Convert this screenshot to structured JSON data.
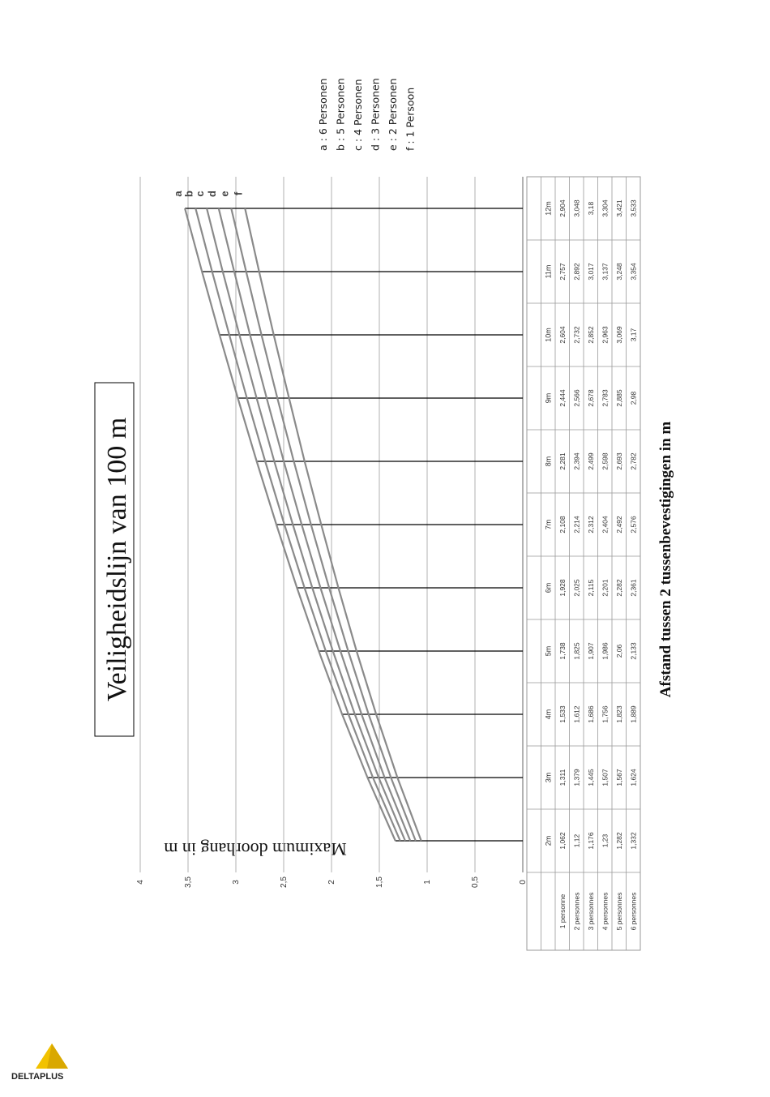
{
  "chart_data": {
    "type": "line",
    "title": "Veiligheidslijn van 100 m",
    "xlabel": "Afstand tussen 2 tussenbevestigingen in m",
    "ylabel": "Maximum doorhang in m",
    "ylim": [
      0,
      4
    ],
    "yticks": [
      "0",
      "0,5",
      "1",
      "1,5",
      "2",
      "2,5",
      "3",
      "3,5",
      "4"
    ],
    "grid": true,
    "categories": [
      "2m",
      "3m",
      "4m",
      "5m",
      "6m",
      "7m",
      "8m",
      "9m",
      "10m",
      "11m",
      "12m"
    ],
    "series": [
      {
        "name": "1 personne",
        "curve_label": "f",
        "values": [
          1.062,
          1.311,
          1.533,
          1.738,
          1.928,
          2.108,
          2.281,
          2.444,
          2.604,
          2.757,
          2.904
        ],
        "display": [
          "1,062",
          "1,311",
          "1,533",
          "1,738",
          "1,928",
          "2,108",
          "2,281",
          "2,444",
          "2,604",
          "2,757",
          "2,904"
        ]
      },
      {
        "name": "2 personnes",
        "curve_label": "e",
        "values": [
          1.12,
          1.379,
          1.612,
          1.825,
          2.025,
          2.214,
          2.394,
          2.566,
          2.732,
          2.892,
          3.048
        ],
        "display": [
          "1,12",
          "1,379",
          "1,612",
          "1,825",
          "2,025",
          "2,214",
          "2,394",
          "2,566",
          "2,732",
          "2,892",
          "3,048"
        ]
      },
      {
        "name": "3 personnes",
        "curve_label": "d",
        "values": [
          1.176,
          1.445,
          1.686,
          1.907,
          2.115,
          2.312,
          2.499,
          2.678,
          2.852,
          3.017,
          3.18
        ],
        "display": [
          "1,176",
          "1,445",
          "1,686",
          "1,907",
          "2,115",
          "2,312",
          "2,499",
          "2,678",
          "2,852",
          "3,017",
          "3,18"
        ]
      },
      {
        "name": "4 personnes",
        "curve_label": "c",
        "values": [
          1.23,
          1.507,
          1.756,
          1.986,
          2.201,
          2.404,
          2.598,
          2.783,
          2.963,
          3.137,
          3.304
        ],
        "display": [
          "1,23",
          "1,507",
          "1,756",
          "1,986",
          "2,201",
          "2,404",
          "2,598",
          "2,783",
          "2,963",
          "3,137",
          "3,304"
        ]
      },
      {
        "name": "5 personnes",
        "curve_label": "b",
        "values": [
          1.282,
          1.567,
          1.823,
          2.06,
          2.282,
          2.492,
          2.693,
          2.885,
          3.069,
          3.248,
          3.421
        ],
        "display": [
          "1,282",
          "1,567",
          "1,823",
          "2,06",
          "2,282",
          "2,492",
          "2,693",
          "2,885",
          "3,069",
          "3,248",
          "3,421"
        ]
      },
      {
        "name": "6 personnes",
        "curve_label": "a",
        "values": [
          1.332,
          1.624,
          1.889,
          2.133,
          2.361,
          2.576,
          2.782,
          2.98,
          3.17,
          3.354,
          3.533
        ],
        "display": [
          "1,332",
          "1,624",
          "1,889",
          "2,133",
          "2,361",
          "2,576",
          "2,782",
          "2,98",
          "3,17",
          "3,354",
          "3,533"
        ]
      }
    ],
    "legend": [
      "a : 6 Personen",
      "b : 5 Personen",
      "c : 4 Personen",
      "d : 3 Personen",
      "e : 2 Personen",
      "f : 1 Persoon"
    ],
    "curve_letters": [
      "a",
      "b",
      "c",
      "d",
      "e",
      "f"
    ],
    "orientation": "rotated 90° counter-clockwise on page",
    "colors": {
      "series_line": "#8a8a8a",
      "grid": "#b0b0b0",
      "drop_line": "#000000"
    }
  },
  "logo": {
    "brand": "DELTAPLUS",
    "colors": [
      "#f2c200",
      "#222222"
    ]
  }
}
